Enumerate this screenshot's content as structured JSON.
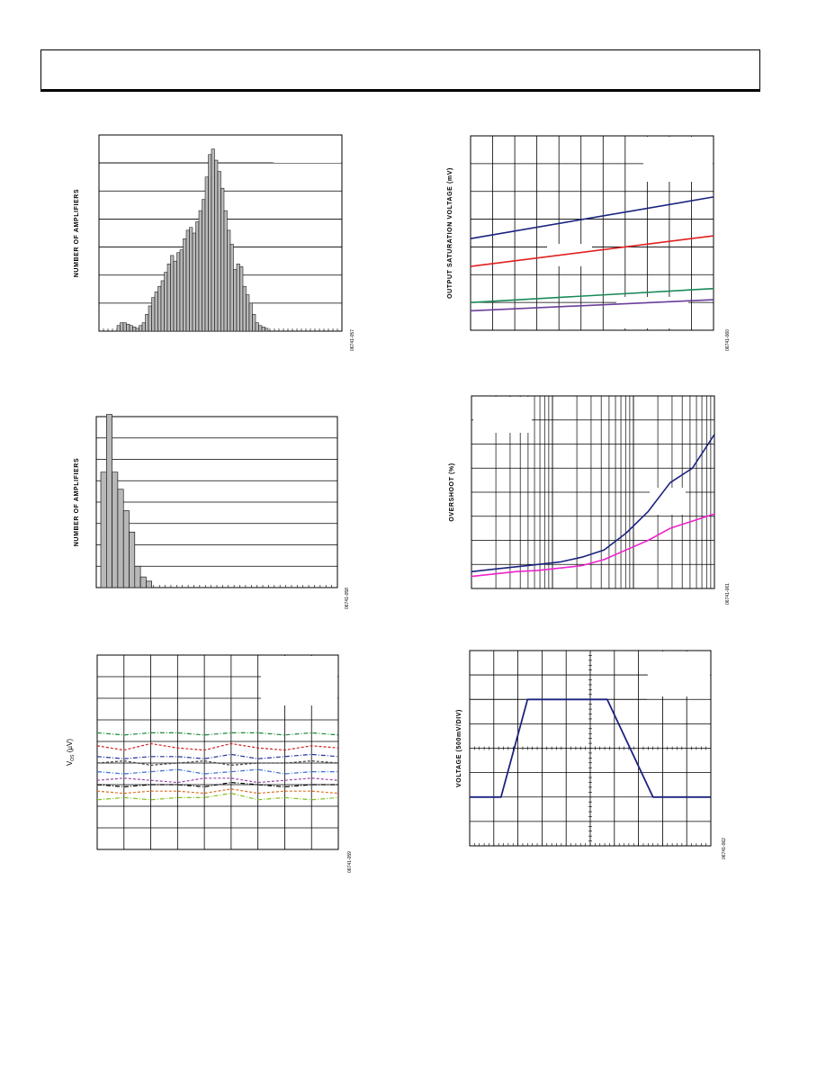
{
  "page": {
    "header": ""
  },
  "figures": [
    {
      "id": "fig-histogram-offset",
      "ylabel": "NUMBER OF AMPLIFIERS",
      "code": "06741-057",
      "chart_data": {
        "type": "bar",
        "title": "",
        "xlabel": "",
        "ylabel": "NUMBER OF AMPLIFIERS",
        "grid": "horizontal",
        "ylim": [
          0,
          7
        ],
        "values": [
          0.2,
          0.3,
          0.3,
          0.25,
          0.2,
          0.15,
          0.1,
          0.2,
          0.3,
          0.6,
          0.9,
          1.2,
          1.4,
          1.6,
          1.8,
          2.1,
          2.4,
          2.7,
          2.5,
          2.8,
          2.9,
          3.3,
          3.6,
          3.7,
          3.5,
          3.9,
          4.3,
          4.7,
          5.5,
          6.3,
          6.5,
          6.1,
          5.7,
          5.1,
          4.3,
          3.6,
          3.1,
          2.2,
          2.4,
          2.3,
          1.6,
          1.3,
          1.0,
          0.6,
          0.3,
          0.2,
          0.15,
          0.1
        ]
      }
    },
    {
      "id": "fig-histogram-tc",
      "ylabel": "NUMBER OF AMPLIFIERS",
      "code": "06741-058",
      "chart_data": {
        "type": "bar",
        "title": "",
        "xlabel": "",
        "ylabel": "NUMBER OF AMPLIFIERS",
        "grid": "horizontal",
        "ylim": [
          0,
          8
        ],
        "values": [
          5.4,
          8.1,
          5.4,
          4.6,
          3.6,
          2.6,
          1.0,
          0.5,
          0.3
        ]
      }
    },
    {
      "id": "fig-vos-drift",
      "ylabel_main": "V",
      "ylabel_sub": "OS",
      "ylabel_unit": " (µV)",
      "code": "06741-059",
      "chart_data": {
        "type": "line",
        "title": "",
        "xlabel": "",
        "ylabel": "VOS (µV)",
        "grid": "both",
        "ylim": [
          0,
          9
        ],
        "series": [
          {
            "color": "#1a8a3a",
            "values": [
              5.4,
              5.3,
              5.4,
              5.4,
              5.3,
              5.4,
              5.4,
              5.3,
              5.4,
              5.3
            ]
          },
          {
            "color": "#cc2222",
            "values": [
              4.8,
              4.6,
              4.9,
              4.7,
              4.6,
              4.9,
              4.7,
              4.6,
              4.8,
              4.7
            ]
          },
          {
            "color": "#223399",
            "values": [
              4.3,
              4.2,
              4.3,
              4.3,
              4.2,
              4.4,
              4.2,
              4.3,
              4.4,
              4.3
            ]
          },
          {
            "color": "#444444",
            "values": [
              4.0,
              4.1,
              3.9,
              4.0,
              4.1,
              3.9,
              4.0,
              4.0,
              4.1,
              4.0
            ]
          },
          {
            "color": "#3a6fd0",
            "values": [
              3.6,
              3.5,
              3.6,
              3.7,
              3.5,
              3.6,
              3.7,
              3.5,
              3.6,
              3.6
            ]
          },
          {
            "color": "#9944aa",
            "values": [
              3.2,
              3.3,
              3.2,
              3.1,
              3.3,
              3.3,
              3.1,
              3.2,
              3.3,
              3.2
            ]
          },
          {
            "color": "#000000",
            "values": [
              3.0,
              2.9,
              3.0,
              3.0,
              2.9,
              3.1,
              3.0,
              2.9,
              3.0,
              3.0
            ]
          },
          {
            "color": "#e07020",
            "values": [
              2.7,
              2.6,
              2.7,
              2.7,
              2.6,
              2.8,
              2.6,
              2.7,
              2.7,
              2.6
            ]
          },
          {
            "color": "#80c020",
            "values": [
              2.3,
              2.4,
              2.3,
              2.4,
              2.4,
              2.6,
              2.3,
              2.4,
              2.3,
              2.4
            ]
          }
        ]
      }
    },
    {
      "id": "fig-output-saturation",
      "ylabel": "OUTPUT SATURATION VOLTAGE (mV)",
      "code": "06741-060",
      "chart_data": {
        "type": "line",
        "title": "",
        "xlabel": "",
        "ylabel": "OUTPUT SATURATION VOLTAGE (mV)",
        "grid": "both",
        "ylim": [
          0,
          7
        ],
        "series": [
          {
            "color": "#1a237e",
            "values": [
              3.3,
              4.8
            ]
          },
          {
            "color": "#e02020",
            "values": [
              2.3,
              3.4
            ]
          },
          {
            "color": "#1a8a5a",
            "values": [
              1.0,
              1.5
            ]
          },
          {
            "color": "#6a3d9a",
            "values": [
              0.7,
              1.1
            ]
          }
        ]
      }
    },
    {
      "id": "fig-overshoot",
      "ylabel": "OVERSHOOT (%)",
      "code": "06741-061",
      "chart_data": {
        "type": "line",
        "title": "",
        "xlabel": "",
        "ylabel": "OVERSHOOT (%)",
        "grid": "both",
        "xscale": "log",
        "ylim": [
          0,
          8
        ],
        "series": [
          {
            "color": "#1a237e",
            "values": [
              0.7,
              0.8,
              0.9,
              1.0,
              1.1,
              1.3,
              1.6,
              2.3,
              3.2,
              4.4,
              5.0,
              6.4
            ]
          },
          {
            "color": "#ee22cc",
            "values": [
              0.5,
              0.6,
              0.7,
              0.75,
              0.85,
              0.95,
              1.2,
              1.6,
              2.0,
              2.5,
              2.8,
              3.1
            ]
          }
        ]
      }
    },
    {
      "id": "fig-large-signal",
      "ylabel": "VOLTAGE (500mV/DIV)",
      "code": "06741-062",
      "chart_data": {
        "type": "line",
        "title": "",
        "xlabel": "",
        "ylabel": "VOLTAGE (500mV/DIV)",
        "grid": "both",
        "xlim": [
          0,
          10
        ],
        "ylim": [
          0,
          8
        ],
        "series": [
          {
            "color": "#1a237e",
            "x": [
              0,
              1.3,
              2.4,
              5.7,
              7.6,
              10
            ],
            "values": [
              2,
              2,
              6,
              6,
              2,
              2
            ]
          }
        ]
      }
    }
  ]
}
